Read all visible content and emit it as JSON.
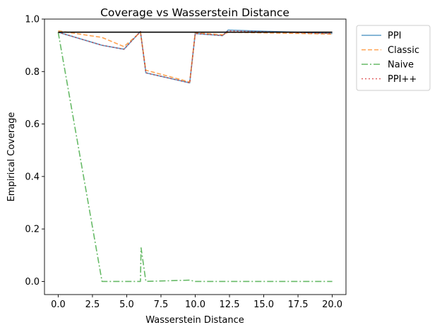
{
  "chart_data": {
    "type": "line",
    "title": "Coverage vs Wasserstein Distance",
    "xlabel": "Wasserstein Distance",
    "ylabel": "Empirical Coverage",
    "xlim": [
      -1.0,
      21.0
    ],
    "ylim": [
      -0.05,
      1.0
    ],
    "xticks": [
      0.0,
      2.5,
      5.0,
      7.5,
      10.0,
      12.5,
      15.0,
      17.5,
      20.0
    ],
    "xtick_labels": [
      "0.0",
      "2.5",
      "5.0",
      "7.5",
      "10.0",
      "12.5",
      "15.0",
      "17.5",
      "20.0"
    ],
    "yticks": [
      0.0,
      0.2,
      0.4,
      0.6,
      0.8,
      1.0
    ],
    "ytick_labels": [
      "0.0",
      "0.2",
      "0.4",
      "0.6",
      "0.8",
      "1.0"
    ],
    "grid": false,
    "legend_position": "outside-right-top",
    "reference_line": {
      "y": 0.95,
      "x_range": [
        0.0,
        20.0
      ],
      "color": "#000000"
    },
    "series": [
      {
        "name": "PPI",
        "color": "#1f77b4",
        "style": "solid",
        "x": [
          0.0,
          3.2,
          4.8,
          6.0,
          6.4,
          9.6,
          10.0,
          12.0,
          12.4,
          20.0
        ],
        "y": [
          0.95,
          0.9,
          0.885,
          0.953,
          0.795,
          0.757,
          0.945,
          0.937,
          0.958,
          0.945
        ]
      },
      {
        "name": "Classic",
        "color": "#ff7f0e",
        "style": "dashed",
        "x": [
          0.0,
          3.2,
          4.8,
          6.0,
          6.4,
          9.6,
          10.0,
          12.0,
          12.4,
          20.0
        ],
        "y": [
          0.955,
          0.93,
          0.895,
          0.95,
          0.805,
          0.76,
          0.948,
          0.94,
          0.95,
          0.943
        ]
      },
      {
        "name": "Naive",
        "color": "#2ca02c",
        "style": "dashdot",
        "x": [
          0.0,
          3.2,
          6.0,
          6.05,
          6.4,
          9.6,
          10.0,
          20.0
        ],
        "y": [
          0.95,
          0.0,
          0.0,
          0.128,
          0.0,
          0.005,
          0.0,
          0.0
        ]
      },
      {
        "name": "PPI++",
        "color": "#d62728",
        "style": "dotted",
        "x": [
          0.0,
          3.2,
          4.8,
          6.0,
          6.4,
          9.6,
          10.0,
          12.0,
          12.4,
          20.0
        ],
        "y": [
          0.95,
          0.9,
          0.885,
          0.952,
          0.795,
          0.757,
          0.945,
          0.937,
          0.955,
          0.945
        ]
      }
    ]
  }
}
